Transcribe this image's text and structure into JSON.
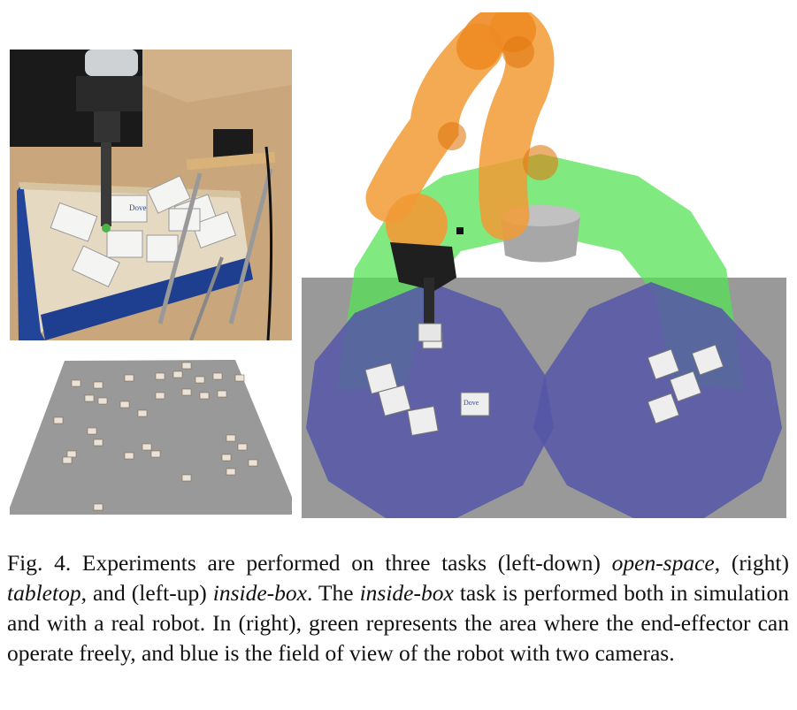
{
  "figure": {
    "caption": {
      "label": "Fig. 4.",
      "segments": [
        {
          "text": " Experiments are performed on three tasks (left-down) ",
          "italic": false
        },
        {
          "text": "open-space",
          "italic": true
        },
        {
          "text": ", (right) ",
          "italic": false
        },
        {
          "text": "tabletop",
          "italic": true
        },
        {
          "text": ", and (left-up) ",
          "italic": false
        },
        {
          "text": "inside-box",
          "italic": true
        },
        {
          "text": ". The ",
          "italic": false
        },
        {
          "text": "inside-box",
          "italic": true
        },
        {
          "text": " task is performed both in simulation and with a real robot. In (right), green represents the area where the end-effector can operate freely, and blue is the field of view of the robot with two cameras.",
          "italic": false
        }
      ]
    },
    "panels": {
      "inside_box": {
        "package_text": "Dove"
      },
      "tabletop": {
        "package_text": "Dove"
      },
      "open_space": {}
    },
    "colors": {
      "workspace_green": "#55e255",
      "camera_blue": "#5656a8",
      "robot_orange": "#f29a35",
      "table_gray": "#999999",
      "box_blue": "#22459a",
      "cardboard": "#c9a67c"
    }
  }
}
